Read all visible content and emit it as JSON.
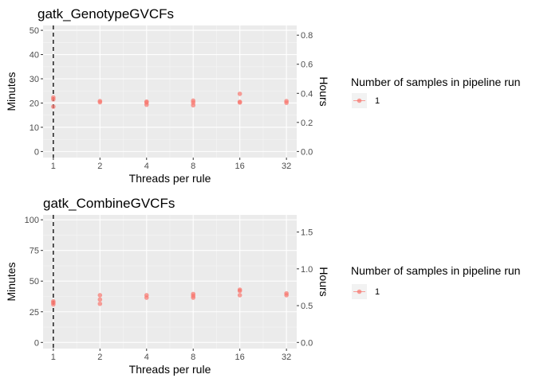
{
  "chart_data": [
    {
      "type": "scatter",
      "title": "gatk_GenotypeGVCFs",
      "xlabel": "Threads per rule",
      "ylabel": "Minutes",
      "y2label": "Hours",
      "x_scale": "log2",
      "x_ticks": [
        "1",
        "2",
        "4",
        "8",
        "16",
        "32"
      ],
      "y_ticks": [
        "0",
        "10",
        "20",
        "30",
        "40",
        "50"
      ],
      "y2_ticks": [
        "0.0",
        "0.2",
        "0.4",
        "0.6",
        "0.8"
      ],
      "ylim": [
        -2.5,
        52
      ],
      "y2lim": [
        -0.0417,
        0.8667
      ],
      "grid": true,
      "legend_position": "right",
      "vline_x": 1,
      "legend": {
        "title": "Number of samples in pipeline run",
        "entries": [
          "1"
        ]
      },
      "series": [
        {
          "name": "1",
          "color": "#f8766d",
          "points": [
            [
              1,
              18.5
            ],
            [
              1,
              21.5
            ],
            [
              1,
              22.3
            ],
            [
              2,
              20.3
            ],
            [
              2,
              20.8
            ],
            [
              4,
              19.3
            ],
            [
              4,
              20.2
            ],
            [
              4,
              20.6
            ],
            [
              8,
              19.1
            ],
            [
              8,
              20.2
            ],
            [
              8,
              21.0
            ],
            [
              16,
              20.2
            ],
            [
              16,
              20.5
            ],
            [
              16,
              23.8
            ],
            [
              32,
              20.1
            ],
            [
              32,
              20.8
            ]
          ]
        }
      ]
    },
    {
      "type": "scatter",
      "title": "gatk_CombineGVCFs",
      "xlabel": "Threads per rule",
      "ylabel": "Minutes",
      "y2label": "Hours",
      "x_scale": "log2",
      "x_ticks": [
        "1",
        "2",
        "4",
        "8",
        "16",
        "32"
      ],
      "y_ticks": [
        "0",
        "25",
        "50",
        "75",
        "100"
      ],
      "y2_ticks": [
        "0.0",
        "0.5",
        "1.0",
        "1.5"
      ],
      "ylim": [
        -5,
        104
      ],
      "y2lim": [
        -0.0833,
        1.7333
      ],
      "grid": true,
      "legend_position": "right",
      "vline_x": 1,
      "legend": {
        "title": "Number of samples in pipeline run",
        "entries": [
          "1"
        ]
      },
      "series": [
        {
          "name": "1",
          "color": "#f8766d",
          "points": [
            [
              1,
              31.0
            ],
            [
              1,
              32.5
            ],
            [
              1,
              33.5
            ],
            [
              2,
              31.5
            ],
            [
              2,
              35.0
            ],
            [
              2,
              38.5
            ],
            [
              4,
              36.5
            ],
            [
              4,
              38.5
            ],
            [
              8,
              36.5
            ],
            [
              8,
              38.0
            ],
            [
              8,
              39.5
            ],
            [
              16,
              38.5
            ],
            [
              16,
              42.0
            ],
            [
              16,
              43.0
            ],
            [
              32,
              38.5
            ],
            [
              32,
              40.0
            ]
          ]
        }
      ]
    }
  ]
}
